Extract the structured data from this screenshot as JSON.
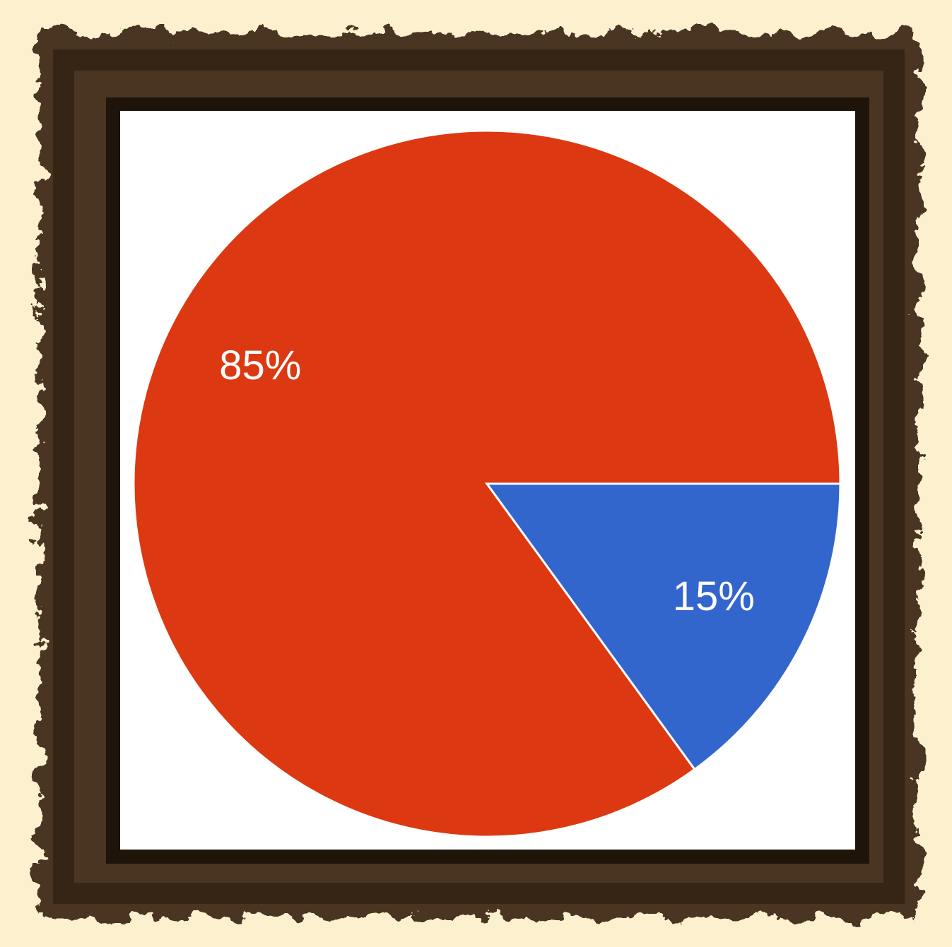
{
  "chart_data": {
    "type": "pie",
    "values": [
      85,
      15
    ],
    "value_labels": [
      "85%",
      "15%"
    ],
    "colors": [
      "#dc3912",
      "#3366cc"
    ]
  }
}
